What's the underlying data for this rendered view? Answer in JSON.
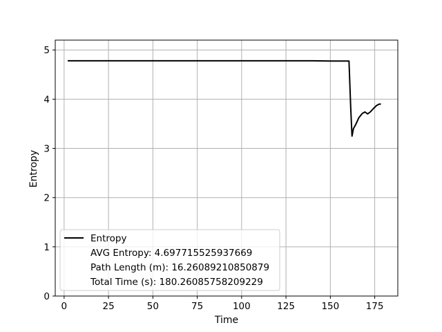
{
  "chart_data": {
    "type": "line",
    "xlabel": "Time",
    "ylabel": "Entropy",
    "xlim": [
      -5,
      188
    ],
    "ylim": [
      0,
      5.2
    ],
    "xticks": [
      0,
      25,
      50,
      75,
      100,
      125,
      150,
      175
    ],
    "yticks": [
      0,
      1,
      2,
      3,
      4,
      5
    ],
    "grid": true,
    "legend_position": "lower-left",
    "legend": {
      "entries": [
        {
          "label": "Entropy",
          "has_line": true
        },
        {
          "label": "AVG Entropy: 4.697715525937669",
          "has_line": false
        },
        {
          "label": "Path Length (m): 16.26089210850879",
          "has_line": false
        },
        {
          "label": "Total Time (s): 180.26085758209229",
          "has_line": false
        }
      ]
    },
    "series": [
      {
        "name": "Entropy",
        "color": "#000000",
        "x": [
          2,
          10,
          20,
          40,
          60,
          80,
          100,
          120,
          140,
          150,
          155,
          158,
          160.5,
          161.5,
          162.2,
          163,
          164.5,
          166,
          168,
          169.5,
          171,
          172.5,
          174,
          176,
          177.5,
          178.5
        ],
        "y": [
          4.78,
          4.78,
          4.78,
          4.78,
          4.78,
          4.78,
          4.78,
          4.78,
          4.78,
          4.775,
          4.775,
          4.775,
          4.775,
          3.8,
          3.25,
          3.4,
          3.5,
          3.62,
          3.71,
          3.74,
          3.7,
          3.74,
          3.8,
          3.87,
          3.9,
          3.9
        ]
      }
    ]
  }
}
